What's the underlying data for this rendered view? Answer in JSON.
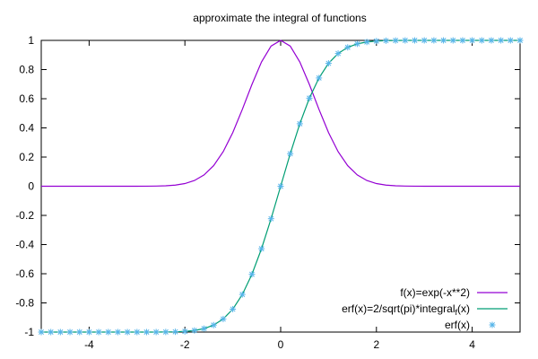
{
  "chart_data": {
    "type": "line",
    "title": "approximate the integral of functions",
    "xlabel": "",
    "ylabel": "",
    "xlim": [
      -5,
      5
    ],
    "ylim": [
      -1,
      1
    ],
    "x_ticks": [
      -4,
      -2,
      0,
      2,
      4
    ],
    "y_ticks": [
      -1,
      -0.8,
      -0.6,
      -0.4,
      -0.2,
      0,
      0.2,
      0.4,
      0.6,
      0.8,
      1
    ],
    "x_tick_labels": [
      "-4",
      "-2",
      "0",
      "2",
      "4"
    ],
    "y_tick_labels": [
      "-1",
      "-0.8",
      "-0.6",
      "-0.4",
      "-0.2",
      "0",
      "0.2",
      "0.4",
      "0.6",
      "0.8",
      "1"
    ],
    "grid": false,
    "legend_position": "bottom-right",
    "series": [
      {
        "name": "f(x)=exp(-x**2)",
        "style": "line",
        "color": "#9400d3",
        "x": [
          -5.0,
          -4.8,
          -4.6,
          -4.4,
          -4.2,
          -4.0,
          -3.8,
          -3.6,
          -3.4,
          -3.2,
          -3.0,
          -2.8,
          -2.6,
          -2.4,
          -2.2,
          -2.0,
          -1.8,
          -1.6,
          -1.4,
          -1.2,
          -1.0,
          -0.8,
          -0.6,
          -0.4,
          -0.2,
          0.0,
          0.2,
          0.4,
          0.6,
          0.8,
          1.0,
          1.2,
          1.4,
          1.6,
          1.8,
          2.0,
          2.2,
          2.4,
          2.6,
          2.8,
          3.0,
          3.2,
          3.4,
          3.6,
          3.8,
          4.0,
          4.2,
          4.4,
          4.6,
          4.8,
          5.0
        ],
        "y": [
          0,
          0,
          0,
          0,
          0,
          0,
          0,
          0,
          0,
          0,
          0.0001,
          0.0004,
          0.0012,
          0.0032,
          0.0079,
          0.0183,
          0.0392,
          0.0773,
          0.1409,
          0.2369,
          0.3679,
          0.5273,
          0.6977,
          0.8521,
          0.9608,
          1.0,
          0.9608,
          0.8521,
          0.6977,
          0.5273,
          0.3679,
          0.2369,
          0.1409,
          0.0773,
          0.0392,
          0.0183,
          0.0079,
          0.0032,
          0.0012,
          0.0004,
          0.0001,
          0,
          0,
          0,
          0,
          0,
          0,
          0,
          0,
          0,
          0
        ]
      },
      {
        "name": "erf(x)=2/sqrt(pi)*integral",
        "name_subscript": "f",
        "name_suffix": "(x)",
        "style": "line",
        "color": "#009e73",
        "x": [
          -5.0,
          -4.8,
          -4.6,
          -4.4,
          -4.2,
          -4.0,
          -3.8,
          -3.6,
          -3.4,
          -3.2,
          -3.0,
          -2.8,
          -2.6,
          -2.4,
          -2.2,
          -2.0,
          -1.8,
          -1.6,
          -1.4,
          -1.2,
          -1.0,
          -0.8,
          -0.6,
          -0.4,
          -0.2,
          0.0,
          0.2,
          0.4,
          0.6,
          0.8,
          1.0,
          1.2,
          1.4,
          1.6,
          1.8,
          2.0,
          2.2,
          2.4,
          2.6,
          2.8,
          3.0,
          3.2,
          3.4,
          3.6,
          3.8,
          4.0,
          4.2,
          4.4,
          4.6,
          4.8,
          5.0
        ],
        "y": [
          -1,
          -1,
          -1,
          -1,
          -1,
          -1,
          -1,
          -1,
          -1,
          -1,
          -1,
          -0.9999,
          -0.9998,
          -0.9993,
          -0.9981,
          -0.9953,
          -0.9891,
          -0.9763,
          -0.9523,
          -0.9103,
          -0.8427,
          -0.7421,
          -0.6039,
          -0.4284,
          -0.2227,
          0.0,
          0.2227,
          0.4284,
          0.6039,
          0.7421,
          0.8427,
          0.9103,
          0.9523,
          0.9763,
          0.9891,
          0.9953,
          0.9981,
          0.9993,
          0.9998,
          0.9999,
          1,
          1,
          1,
          1,
          1,
          1,
          1,
          1,
          1,
          1,
          1
        ]
      },
      {
        "name": "erf(x)",
        "style": "points",
        "marker": "asterisk",
        "color": "#56b4e9",
        "x": [
          -5.0,
          -4.8,
          -4.6,
          -4.4,
          -4.2,
          -4.0,
          -3.8,
          -3.6,
          -3.4,
          -3.2,
          -3.0,
          -2.8,
          -2.6,
          -2.4,
          -2.2,
          -2.0,
          -1.8,
          -1.6,
          -1.4,
          -1.2,
          -1.0,
          -0.8,
          -0.6,
          -0.4,
          -0.2,
          0.0,
          0.2,
          0.4,
          0.6,
          0.8,
          1.0,
          1.2,
          1.4,
          1.6,
          1.8,
          2.0,
          2.2,
          2.4,
          2.6,
          2.8,
          3.0,
          3.2,
          3.4,
          3.6,
          3.8,
          4.0,
          4.2,
          4.4,
          4.6,
          4.8,
          5.0
        ],
        "y": [
          -1,
          -1,
          -1,
          -1,
          -1,
          -1,
          -1,
          -1,
          -1,
          -1,
          -1,
          -0.9999,
          -0.9998,
          -0.9993,
          -0.9981,
          -0.9953,
          -0.9891,
          -0.9763,
          -0.9523,
          -0.9103,
          -0.8427,
          -0.7421,
          -0.6039,
          -0.4284,
          -0.2227,
          0.0,
          0.2227,
          0.4284,
          0.6039,
          0.7421,
          0.8427,
          0.9103,
          0.9523,
          0.9763,
          0.9891,
          0.9953,
          0.9981,
          0.9993,
          0.9998,
          0.9999,
          1,
          1,
          1,
          1,
          1,
          1,
          1,
          1,
          1,
          1,
          1
        ]
      }
    ]
  }
}
